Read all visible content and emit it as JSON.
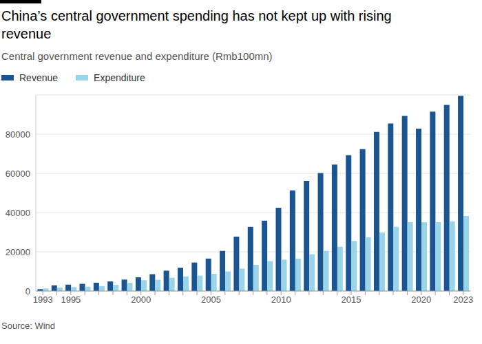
{
  "chart_data": {
    "type": "bar",
    "title": "China’s central government spending has not kept up with rising revenue",
    "subtitle": "Central government revenue and expenditure (Rmb100mn)",
    "source": "Source: Wind",
    "categories": [
      "1993",
      null,
      "1995",
      null,
      null,
      null,
      null,
      "2000",
      null,
      null,
      null,
      null,
      "2005",
      null,
      null,
      null,
      null,
      "2010",
      null,
      null,
      null,
      null,
      "2015",
      null,
      null,
      null,
      null,
      "2020",
      null,
      null,
      "2023"
    ],
    "series": [
      {
        "name": "Revenue",
        "color": "#1a5592",
        "values": [
          958,
          2907,
          3257,
          3661,
          4227,
          4892,
          5849,
          6989,
          8583,
          10389,
          11865,
          14503,
          16549,
          20457,
          27749,
          32681,
          35916,
          42488,
          51327,
          56175,
          60198,
          64493,
          69267,
          72366,
          81123,
          85456,
          89309,
          82771,
          91462,
          94885,
          99566
        ]
      },
      {
        "name": "Expenditure",
        "color": "#99d4e8",
        "values": [
          1312,
          1754,
          1995,
          2151,
          2533,
          3126,
          4152,
          5520,
          5768,
          6772,
          7420,
          7894,
          8776,
          9991,
          11442,
          13344,
          15256,
          15990,
          16514,
          18765,
          20472,
          22570,
          25542,
          27404,
          29857,
          32708,
          35115,
          35096,
          35050,
          35570,
          38219
        ]
      }
    ],
    "ylim": [
      0,
      100000
    ],
    "yticks": [
      0,
      20000,
      40000,
      60000,
      80000
    ],
    "grid": true,
    "legend": "top-left"
  }
}
